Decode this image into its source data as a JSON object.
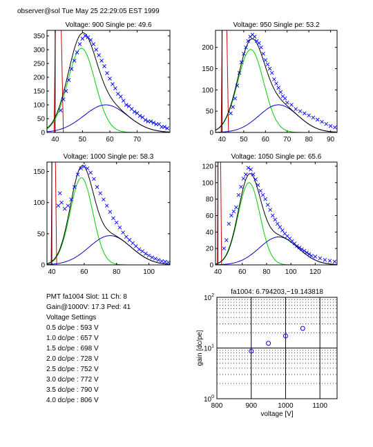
{
  "header": "observer@sol  Tue May 25 22:29:05 EST 1999",
  "info_lines": [
    "PMT fa1004 Slot: 11 Ch: 8",
    "Gain@1000V: 17.3 Ped: 41",
    "Voltage Settings",
    "0.5 dc/pe : 593 V",
    "1.0 dc/pe : 657 V",
    "1.5 dc/pe : 698 V",
    "2.0 dc/pe : 728 V",
    "2.5 dc/pe : 752 V",
    "3.0 dc/pe : 772 V",
    "3.5 dc/pe : 790 V",
    "4.0 dc/pe : 806 V"
  ],
  "colors": {
    "data": "#0000ff",
    "total": "#000000",
    "single_pe": "#00cc00",
    "double_pe": "#0000cc",
    "pedestal": "#cc0000",
    "gain_line": "#cc0000"
  },
  "chart_data": [
    {
      "type": "scatter",
      "title": "Voltage: 900 Single pe: 49.6",
      "xlim": [
        37,
        82
      ],
      "ylim": [
        0,
        370
      ],
      "xticks": [
        40,
        50,
        60,
        70
      ],
      "yticks": [
        0,
        50,
        100,
        150,
        200,
        250,
        300,
        350
      ],
      "pedestal_x": 41,
      "components": [
        {
          "name": "single",
          "amp": 305,
          "mu": 49.6,
          "sigma": 5.0
        },
        {
          "name": "double",
          "amp": 100,
          "mu": 58.5,
          "sigma": 8.0
        }
      ],
      "points": [
        [
          42,
          80
        ],
        [
          43,
          120
        ],
        [
          44,
          150
        ],
        [
          45,
          190
        ],
        [
          46,
          230
        ],
        [
          47,
          260
        ],
        [
          48,
          290
        ],
        [
          49,
          320
        ],
        [
          50,
          340
        ],
        [
          51,
          350
        ],
        [
          52,
          345
        ],
        [
          53,
          335
        ],
        [
          54,
          320
        ],
        [
          55,
          300
        ],
        [
          56,
          280
        ],
        [
          57,
          260
        ],
        [
          58,
          240
        ],
        [
          59,
          215
        ],
        [
          60,
          195
        ],
        [
          61,
          175
        ],
        [
          62,
          160
        ],
        [
          63,
          140
        ],
        [
          64,
          130
        ],
        [
          65,
          115
        ],
        [
          66,
          100
        ],
        [
          67,
          95
        ],
        [
          68,
          85
        ],
        [
          69,
          75
        ],
        [
          70,
          70
        ],
        [
          71,
          60
        ],
        [
          72,
          55
        ],
        [
          73,
          45
        ],
        [
          74,
          40
        ],
        [
          75,
          40
        ],
        [
          76,
          35
        ],
        [
          77,
          30
        ],
        [
          78,
          30
        ],
        [
          79,
          20
        ],
        [
          80,
          20
        ],
        [
          81,
          15
        ]
      ]
    },
    {
      "type": "scatter",
      "title": "Voltage: 950 Single pe: 53.2",
      "xlim": [
        37,
        93
      ],
      "ylim": [
        0,
        240
      ],
      "xticks": [
        40,
        50,
        60,
        70,
        80,
        90
      ],
      "yticks": [
        0,
        50,
        100,
        150,
        200
      ],
      "pedestal_x": 41,
      "components": [
        {
          "name": "single",
          "amp": 195,
          "mu": 53.2,
          "sigma": 6.0
        },
        {
          "name": "double",
          "amp": 65,
          "mu": 66.0,
          "sigma": 9.0
        }
      ],
      "points": [
        [
          44,
          45
        ],
        [
          45,
          60
        ],
        [
          46,
          80
        ],
        [
          47,
          110
        ],
        [
          48,
          140
        ],
        [
          49,
          165
        ],
        [
          50,
          185
        ],
        [
          51,
          200
        ],
        [
          52,
          215
        ],
        [
          53,
          225
        ],
        [
          54,
          230
        ],
        [
          55,
          225
        ],
        [
          56,
          215
        ],
        [
          57,
          210
        ],
        [
          58,
          200
        ],
        [
          59,
          185
        ],
        [
          60,
          170
        ],
        [
          61,
          160
        ],
        [
          62,
          150
        ],
        [
          63,
          140
        ],
        [
          64,
          125
        ],
        [
          65,
          115
        ],
        [
          66,
          105
        ],
        [
          67,
          95
        ],
        [
          68,
          85
        ],
        [
          69,
          80
        ],
        [
          70,
          70
        ],
        [
          72,
          65
        ],
        [
          74,
          55
        ],
        [
          76,
          50
        ],
        [
          78,
          45
        ],
        [
          80,
          40
        ],
        [
          82,
          35
        ],
        [
          84,
          30
        ],
        [
          86,
          25
        ],
        [
          88,
          20
        ],
        [
          90,
          15
        ],
        [
          92,
          12
        ]
      ]
    },
    {
      "type": "scatter",
      "title": "Voltage: 1000 Single pe: 58.3",
      "xlim": [
        37,
        113
      ],
      "ylim": [
        0,
        165
      ],
      "xticks": [
        40,
        60,
        80,
        100
      ],
      "yticks": [
        0,
        50,
        100,
        150
      ],
      "pedestal_x": 41,
      "components": [
        {
          "name": "single",
          "amp": 140,
          "mu": 58.3,
          "sigma": 7.0
        },
        {
          "name": "double",
          "amp": 47,
          "mu": 76.0,
          "sigma": 13.0
        }
      ],
      "points": [
        [
          44,
          95
        ],
        [
          45,
          115
        ],
        [
          46,
          100
        ],
        [
          48,
          90
        ],
        [
          50,
          95
        ],
        [
          52,
          105
        ],
        [
          54,
          125
        ],
        [
          56,
          145
        ],
        [
          58,
          155
        ],
        [
          60,
          158
        ],
        [
          62,
          155
        ],
        [
          64,
          148
        ],
        [
          66,
          138
        ],
        [
          68,
          125
        ],
        [
          70,
          115
        ],
        [
          72,
          105
        ],
        [
          74,
          95
        ],
        [
          76,
          85
        ],
        [
          78,
          75
        ],
        [
          80,
          68
        ],
        [
          82,
          60
        ],
        [
          84,
          52
        ],
        [
          86,
          45
        ],
        [
          88,
          40
        ],
        [
          90,
          35
        ],
        [
          92,
          30
        ],
        [
          94,
          25
        ],
        [
          96,
          22
        ],
        [
          98,
          18
        ],
        [
          100,
          15
        ],
        [
          102,
          12
        ],
        [
          104,
          10
        ],
        [
          106,
          8
        ],
        [
          108,
          6
        ],
        [
          110,
          5
        ],
        [
          112,
          4
        ]
      ]
    },
    {
      "type": "scatter",
      "title": "Voltage: 1050 Single pe: 65.6",
      "xlim": [
        38,
        138
      ],
      "ylim": [
        0,
        125
      ],
      "xticks": [
        40,
        60,
        80,
        100,
        120
      ],
      "yticks": [
        0,
        20,
        40,
        60,
        80,
        100,
        120
      ],
      "pedestal_x": 41,
      "components": [
        {
          "name": "single",
          "amp": 100,
          "mu": 65.6,
          "sigma": 9.0
        },
        {
          "name": "double",
          "amp": 34,
          "mu": 90.0,
          "sigma": 16.0
        }
      ],
      "points": [
        [
          45,
          20
        ],
        [
          47,
          30
        ],
        [
          49,
          50
        ],
        [
          51,
          60
        ],
        [
          53,
          65
        ],
        [
          55,
          70
        ],
        [
          57,
          85
        ],
        [
          59,
          95
        ],
        [
          61,
          105
        ],
        [
          63,
          110
        ],
        [
          65,
          118
        ],
        [
          67,
          116
        ],
        [
          69,
          110
        ],
        [
          71,
          104
        ],
        [
          73,
          97
        ],
        [
          75,
          90
        ],
        [
          77,
          85
        ],
        [
          79,
          80
        ],
        [
          81,
          73
        ],
        [
          83,
          67
        ],
        [
          85,
          60
        ],
        [
          87,
          55
        ],
        [
          89,
          50
        ],
        [
          91,
          46
        ],
        [
          93,
          42
        ],
        [
          95,
          38
        ],
        [
          97,
          35
        ],
        [
          99,
          32
        ],
        [
          101,
          29
        ],
        [
          103,
          26
        ],
        [
          105,
          23
        ],
        [
          107,
          21
        ],
        [
          109,
          19
        ],
        [
          111,
          17
        ],
        [
          113,
          15
        ],
        [
          115,
          13
        ],
        [
          117,
          11
        ],
        [
          120,
          10
        ],
        [
          124,
          8
        ],
        [
          128,
          6
        ],
        [
          132,
          5
        ],
        [
          136,
          4
        ]
      ]
    },
    {
      "type": "line",
      "title": "fa1004: 6.794203,−19.143818",
      "xlabel": "voltage [V]",
      "ylabel": "gain [dc/pe]",
      "xscale": "linear",
      "yscale": "log",
      "xlim": [
        800,
        1150
      ],
      "ylim": [
        1,
        100
      ],
      "xticks": [
        800,
        900,
        1000,
        1100
      ],
      "yticks": [
        1,
        10,
        100
      ],
      "ytick_labels": [
        [
          "10",
          "0"
        ],
        [
          "10",
          "1"
        ],
        [
          "10",
          "2"
        ]
      ],
      "grid": true,
      "points": [
        [
          900,
          8.7
        ],
        [
          950,
          12.4
        ],
        [
          1000,
          17.3
        ],
        [
          1050,
          24.3
        ]
      ],
      "fit": {
        "slope": 6.794203,
        "intercept": -19.143818
      }
    }
  ]
}
